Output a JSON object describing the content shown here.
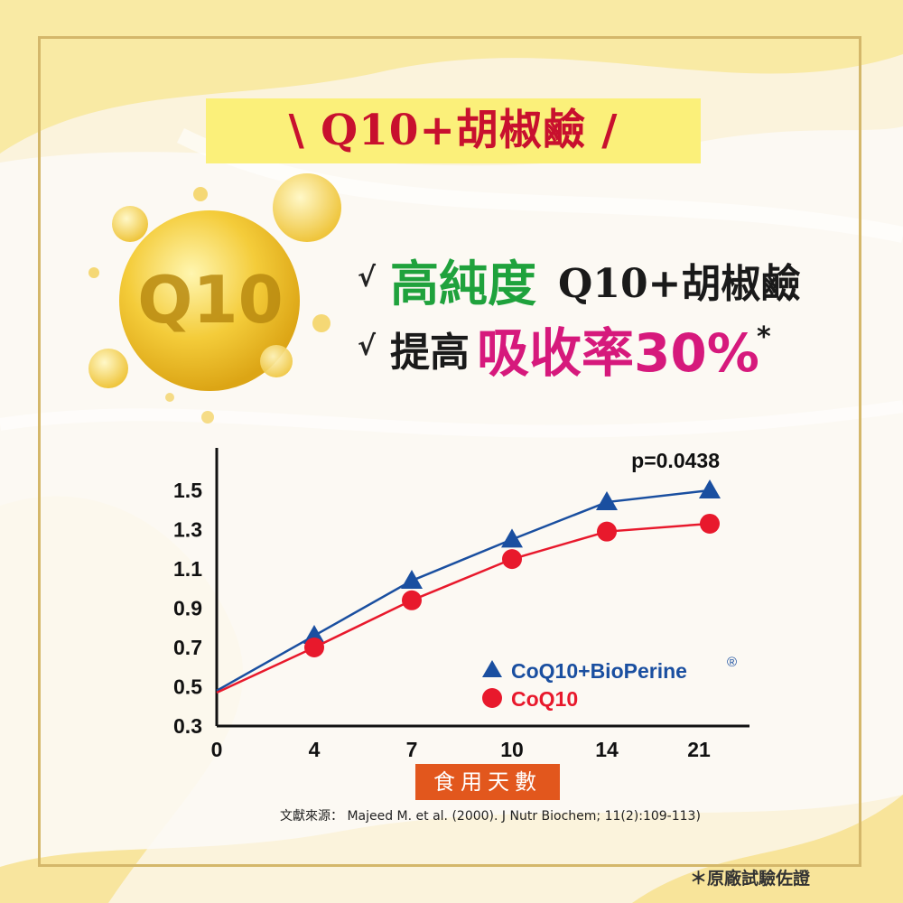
{
  "header": {
    "title": "\\ Q10+胡椒鹼 /"
  },
  "bubble": {
    "label": "Q10"
  },
  "bullets": [
    {
      "check": "√",
      "highlight": "高純度",
      "rest": "Q10+胡椒鹼"
    },
    {
      "check": "√",
      "lead": "提高",
      "highlight": "吸收率30%",
      "star": "*"
    }
  ],
  "colors": {
    "title_red": "#c8102e",
    "title_bar_yellow": "#fbf07a",
    "green": "#1fa23c",
    "pink": "#d6197c",
    "series_blue": "#1a4fa0",
    "series_red": "#e8192c",
    "xlabel_orange": "#e2571d",
    "frame_gold": "#d4b76a"
  },
  "chart_data": {
    "type": "line",
    "annotation": "p=0.0438",
    "xlabel": "食用天數",
    "x_ticks": [
      "0",
      "4",
      "7",
      "10",
      "14",
      "21"
    ],
    "y_ticks": [
      "0.3",
      "0.5",
      "0.7",
      "0.9",
      "1.1",
      "1.3",
      "1.5"
    ],
    "ylim": [
      0.3,
      1.6
    ],
    "series": [
      {
        "name": "CoQ10+BioPerine",
        "name_mark": "®",
        "marker": "triangle",
        "color": "#1a4fa0",
        "points": [
          [
            0,
            0.48
          ],
          [
            4,
            0.76
          ],
          [
            7,
            1.04
          ],
          [
            10,
            1.25
          ],
          [
            14,
            1.44
          ],
          [
            21,
            1.5
          ]
        ]
      },
      {
        "name": "CoQ10",
        "marker": "circle",
        "color": "#e8192c",
        "points": [
          [
            0,
            0.47
          ],
          [
            4,
            0.7
          ],
          [
            7,
            0.94
          ],
          [
            10,
            1.15
          ],
          [
            14,
            1.29
          ],
          [
            21,
            1.33
          ]
        ]
      }
    ],
    "legend_position": "bottom-right",
    "grid": false
  },
  "source": {
    "text": "文獻來源： Majeed M. et al. (2000). J Nutr Biochem; 11(2):109-113)"
  },
  "footnote": {
    "text": "＊原廠試驗佐證"
  }
}
